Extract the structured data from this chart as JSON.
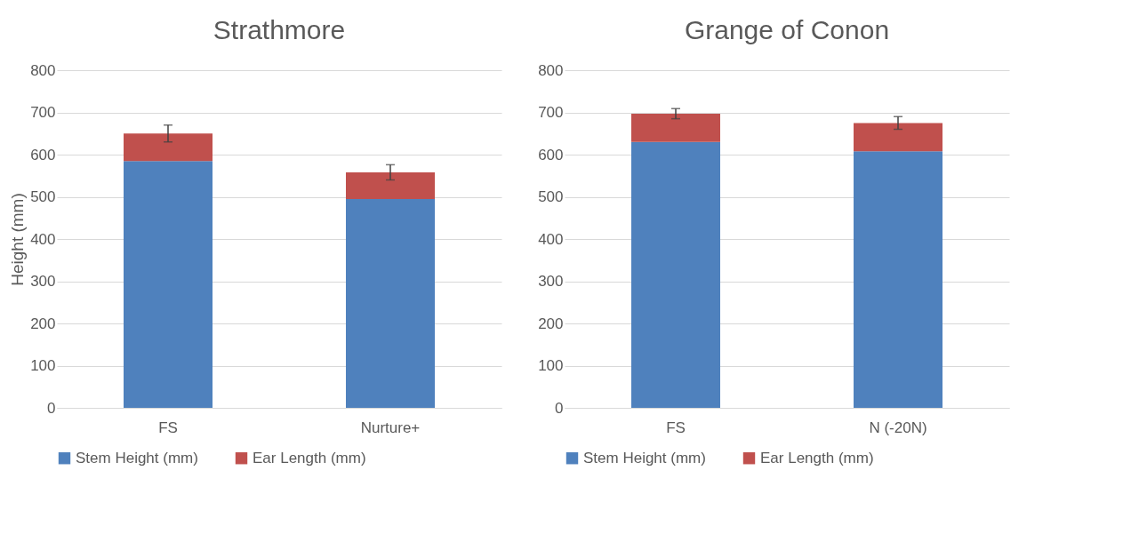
{
  "chart_data": [
    {
      "type": "bar",
      "title": "Strathmore",
      "ylabel": "Height (mm)",
      "categories": [
        "FS",
        "Nurture+"
      ],
      "stacked": true,
      "ylim": [
        0,
        800
      ],
      "yticks": [
        0,
        100,
        200,
        300,
        400,
        500,
        600,
        700,
        800
      ],
      "grid": "y",
      "legend": "bottom",
      "series": [
        {
          "name": "Stem Height (mm)",
          "color": "#4f81bd",
          "values": [
            585,
            495
          ]
        },
        {
          "name": "Ear Length (mm)",
          "color": "#c0504d",
          "values": [
            65,
            63
          ],
          "errors": [
            20,
            18
          ]
        }
      ]
    },
    {
      "type": "bar",
      "title": "Grange of Conon",
      "categories": [
        "FS",
        "N (-20N)"
      ],
      "stacked": true,
      "ylim": [
        0,
        800
      ],
      "yticks": [
        0,
        100,
        200,
        300,
        400,
        500,
        600,
        700,
        800
      ],
      "grid": "y",
      "legend": "bottom",
      "series": [
        {
          "name": "Stem Height (mm)",
          "color": "#4f81bd",
          "values": [
            630,
            608
          ]
        },
        {
          "name": "Ear Length (mm)",
          "color": "#c0504d",
          "values": [
            67,
            67
          ],
          "errors": [
            12,
            15
          ]
        }
      ]
    }
  ]
}
